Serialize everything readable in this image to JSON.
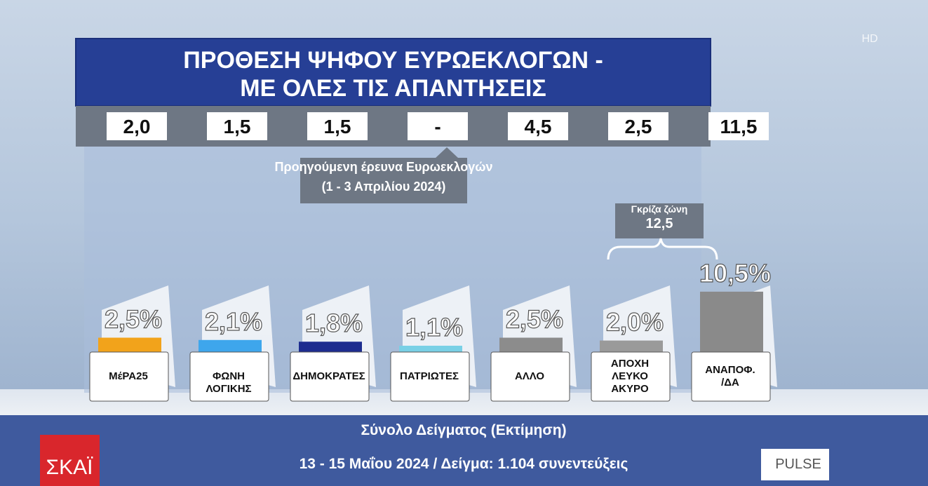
{
  "header": {
    "channel": "ΣΚΑΪ",
    "hd": "HD",
    "pollster": "PULSE"
  },
  "chart_data": {
    "type": "bar",
    "title": "ΠΡΟΘΕΣΗ ΨΗΦΟΥ ΕΥΡΩΕΚΛΟΓΩΝ -\nΜΕ ΟΛΕΣ ΤΙΣ ΑΠΑΝΤΗΣΕΙΣ",
    "categories": [
      "ΜέΡΑ25",
      "ΦΩΝΗ ΛΟΓΙΚΗΣ",
      "ΔΗΜΟΚΡΑΤΕΣ",
      "ΠΑΤΡΙΩΤΕΣ",
      "ΑΛΛΟ",
      "ΑΠΟΧΗ\nΛΕΥΚΟ\nΑΚΥΡΟ",
      "ΑΝΑΠΟΦ.\n/ΔΑ"
    ],
    "values": [
      2.5,
      2.1,
      1.8,
      1.1,
      2.5,
      2.0,
      10.5
    ],
    "value_labels": [
      "2,5%",
      "2,1%",
      "1,8%",
      "1,1%",
      "2,5%",
      "2,0%",
      "10,5%"
    ],
    "colors": [
      "#f2a31b",
      "#3ea6ec",
      "#1d2c8f",
      "#79d0e6",
      "#8c8c8c",
      "#9a9a9a",
      "#8a8a8a"
    ],
    "previous": [
      {
        "value": 2.0,
        "label": "2,0"
      },
      {
        "value": 1.5,
        "label": "1,5"
      },
      {
        "value": 1.5,
        "label": "1,5"
      },
      {
        "value": null,
        "label": "-"
      },
      {
        "value": 4.5,
        "label": "4,5"
      },
      {
        "value": 2.5,
        "label": "2,5"
      },
      {
        "value": 11.5,
        "label": "11,5"
      }
    ],
    "previous_note": [
      "Προηγούμενη έρευνα Ευρωεκλογών",
      "(1 - 3 Απριλίου 2024)"
    ],
    "gray_zone": {
      "title": "Γκρίζα ζώνη",
      "value": 12.5,
      "label": "12,5"
    },
    "footer": [
      "Σύνολο Δείγματος (Εκτίμηση)",
      "13 - 15 Μαΐου 2024 / Δείγμα: 1.104 συνεντεύξεις"
    ]
  }
}
